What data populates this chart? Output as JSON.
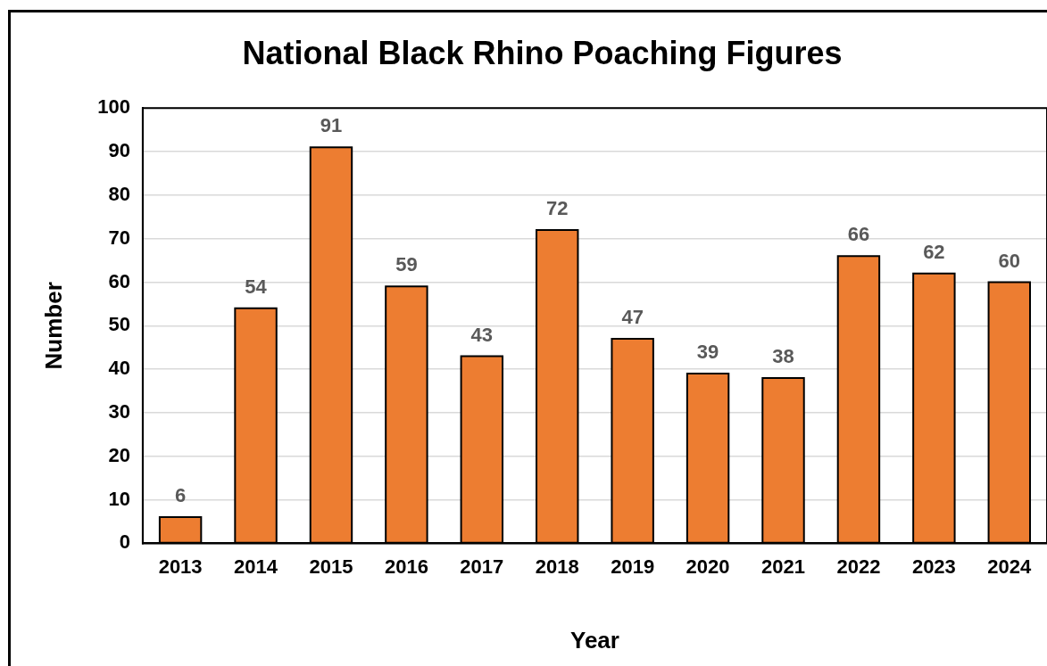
{
  "chart_data": {
    "type": "bar",
    "title": "National Black Rhino Poaching Figures",
    "xlabel": "Year",
    "ylabel": "Number",
    "categories": [
      "2013",
      "2014",
      "2015",
      "2016",
      "2017",
      "2018",
      "2019",
      "2020",
      "2021",
      "2022",
      "2023",
      "2024"
    ],
    "values": [
      6,
      54,
      91,
      59,
      43,
      72,
      47,
      39,
      38,
      66,
      62,
      60
    ],
    "color": "#ed7d31",
    "ylim": [
      0,
      100
    ],
    "yticks": [
      0,
      10,
      20,
      30,
      40,
      50,
      60,
      70,
      80,
      90,
      100
    ],
    "grid": "y",
    "legend": false,
    "data_labels": true
  }
}
